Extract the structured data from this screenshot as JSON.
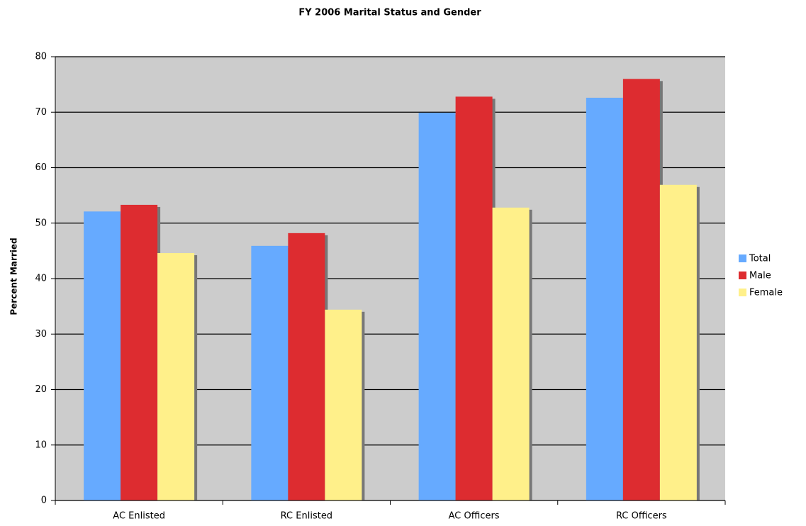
{
  "chart_data": {
    "type": "bar",
    "title": "FY 2006 Marital Status and Gender",
    "y_label": "Percent Married",
    "categories": [
      "AC Enlisted",
      "RC Enlisted",
      "AC Officers",
      "RC Officers"
    ],
    "series": [
      {
        "name": "Total",
        "color": "#66aaff",
        "values": [
          52.1,
          45.9,
          69.9,
          72.6
        ]
      },
      {
        "name": "Male",
        "color": "#dd2c30",
        "values": [
          53.3,
          48.2,
          72.8,
          76.0
        ]
      },
      {
        "name": "Female",
        "color": "#fff08a",
        "values": [
          44.6,
          34.4,
          52.8,
          56.9
        ]
      }
    ],
    "ylim": [
      0,
      80
    ],
    "yticks": [
      0,
      10,
      20,
      30,
      40,
      50,
      60,
      70,
      80
    ],
    "grid": true,
    "legend": "right"
  }
}
